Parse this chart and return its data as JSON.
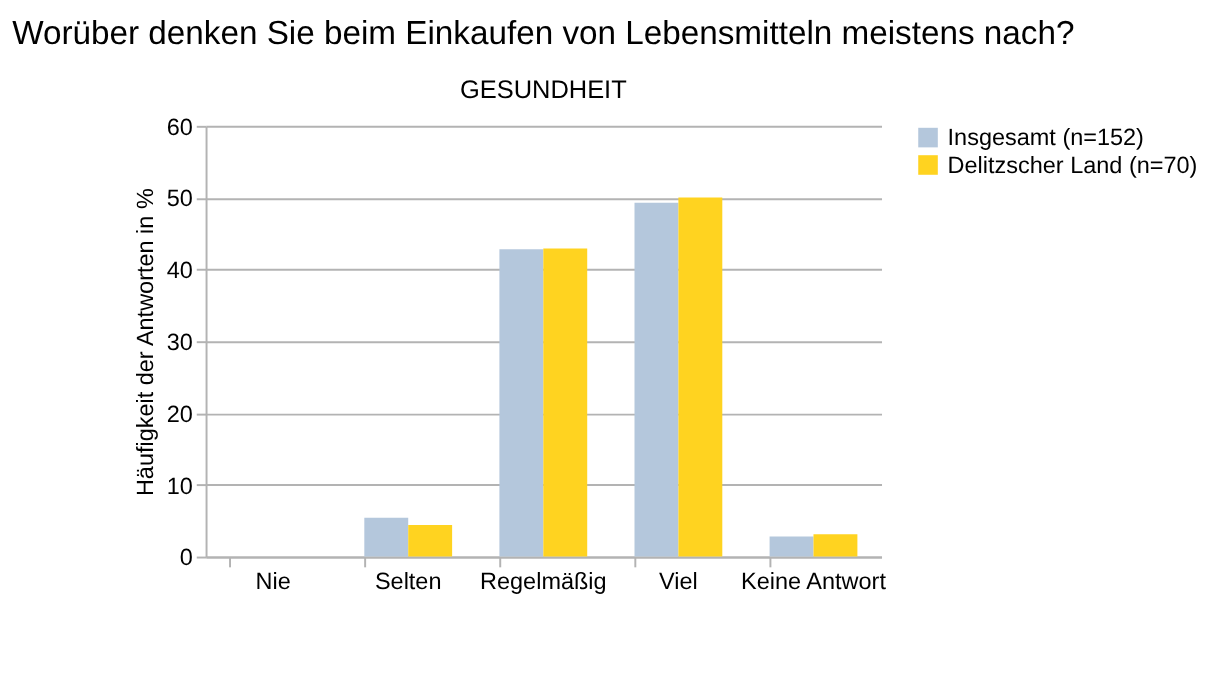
{
  "chart_data": {
    "type": "bar",
    "title": "Worüber denken Sie beim Einkaufen von Lebensmitteln meistens nach?",
    "subtitle": "GESUNDHEIT",
    "ylabel": "Häufigkeit der Antworten in %",
    "categories": [
      "Nie",
      "Selten",
      "Regelmäßig",
      "Viel",
      "Keine Antwort"
    ],
    "series": [
      {
        "name": "Insgesamt (n=152)",
        "color": "#b4c7dc",
        "values": [
          0,
          5.4,
          42.8,
          49.3,
          2.8
        ]
      },
      {
        "name": "Delitzscher Land (n=70)",
        "color": "#ffd320",
        "values": [
          0,
          4.4,
          42.9,
          50.0,
          3.1
        ]
      }
    ],
    "ylim": [
      0,
      60
    ],
    "yticks": [
      0,
      10,
      20,
      30,
      40,
      50,
      60
    ],
    "grid": "y",
    "legend": "right"
  }
}
